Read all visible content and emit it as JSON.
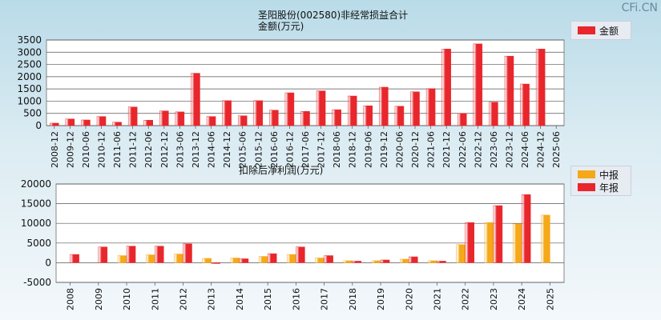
{
  "watermark": "CFi.CN",
  "chart_data": [
    {
      "type": "bar",
      "title": "圣阳股份(002580)非经常损益合计",
      "subtitle": "金额(万元)",
      "ylim": [
        0,
        3500
      ],
      "yticks": [
        0,
        500,
        1000,
        1500,
        2000,
        2500,
        3000,
        3500
      ],
      "grid": true,
      "legend_position": "top-right",
      "categories": [
        "2008-12",
        "2009-12",
        "2010-06",
        "2010-12",
        "2011-06",
        "2011-12",
        "2012-06",
        "2012-12",
        "2013-06",
        "2013-12",
        "2014-06",
        "2014-12",
        "2015-06",
        "2015-12",
        "2016-06",
        "2016-12",
        "2017-06",
        "2017-12",
        "2018-06",
        "2018-12",
        "2019-06",
        "2019-12",
        "2020-06",
        "2020-12",
        "2021-06",
        "2021-12",
        "2022-06",
        "2022-12",
        "2023-06",
        "2023-12",
        "2024-06",
        "2024-12",
        "2025-06"
      ],
      "series": [
        {
          "name": "金额",
          "color": "#e8262b",
          "values": [
            100,
            270,
            230,
            370,
            140,
            760,
            220,
            600,
            560,
            2140,
            370,
            1020,
            400,
            1020,
            630,
            1340,
            580,
            1420,
            650,
            1210,
            810,
            1570,
            790,
            1380,
            1510,
            3130,
            500,
            3340,
            960,
            2840,
            1700,
            3130,
            null
          ]
        }
      ]
    },
    {
      "type": "bar",
      "title": "扣除后净利润(万元)",
      "ylim": [
        -5000,
        20000
      ],
      "yticks": [
        -5000,
        0,
        5000,
        10000,
        15000,
        20000
      ],
      "grid": true,
      "legend_position": "top-right",
      "categories": [
        "2008",
        "2009",
        "2010",
        "2011",
        "2012",
        "2013",
        "2014",
        "2015",
        "2016",
        "2017",
        "2018",
        "2019",
        "2020",
        "2021",
        "2022",
        "2023",
        "2024",
        "2025"
      ],
      "series": [
        {
          "name": "中报",
          "color": "#f5a818",
          "values": [
            null,
            null,
            1800,
            2000,
            2200,
            1100,
            1200,
            1600,
            2100,
            1200,
            500,
            500,
            900,
            500,
            4600,
            10200,
            9900,
            12100
          ]
        },
        {
          "name": "年报",
          "color": "#e8262b",
          "values": [
            2100,
            4000,
            4200,
            4200,
            4800,
            -100,
            1000,
            2300,
            4000,
            1800,
            400,
            700,
            1500,
            400,
            10200,
            14500,
            17300,
            null
          ]
        }
      ]
    }
  ]
}
